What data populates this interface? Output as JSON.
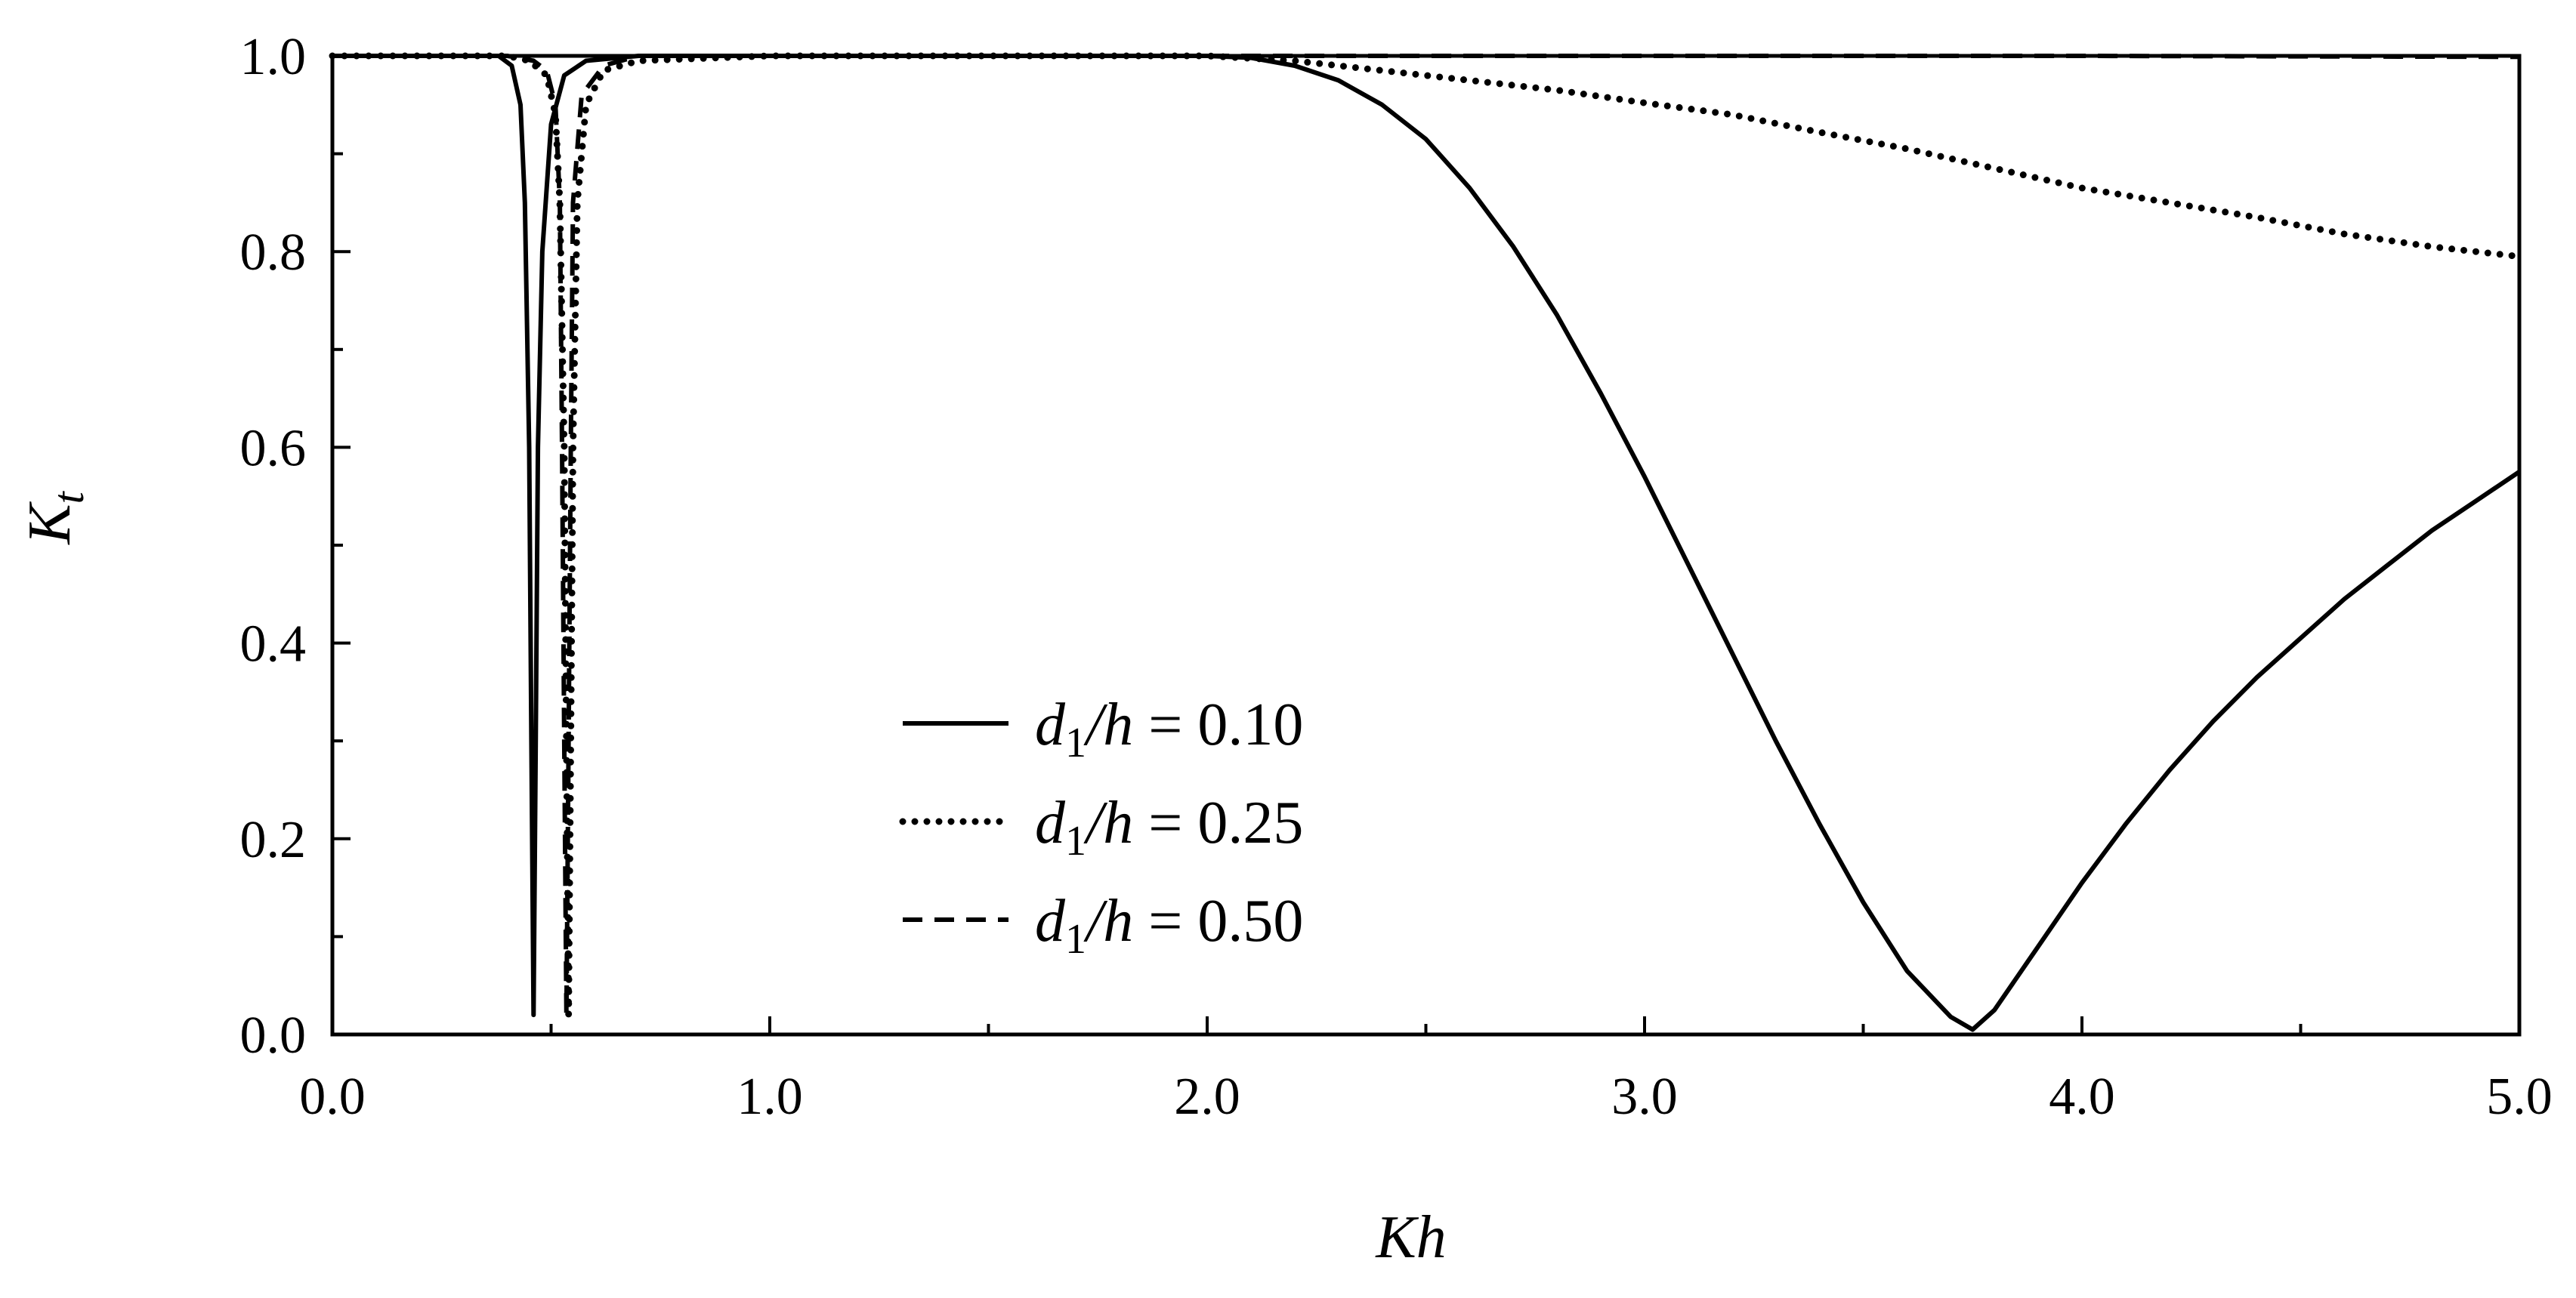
{
  "chart_data": {
    "type": "line",
    "xlabel": "Kh",
    "ylabel_main": "K",
    "ylabel_sub": "t",
    "xlim": [
      0,
      5
    ],
    "ylim": [
      0,
      1
    ],
    "x_ticks": [
      "0.0",
      "1.0",
      "2.0",
      "3.0",
      "4.0",
      "5.0"
    ],
    "y_ticks": [
      "0.0",
      "0.2",
      "0.4",
      "0.6",
      "0.8",
      "1.0"
    ],
    "grid": false,
    "legend_position": "center",
    "series": [
      {
        "name": "d1/h = 0.10",
        "legend": {
          "var": "d",
          "sub": "1",
          "rest": "/h",
          "eq": " = 0.10"
        },
        "style": "solid",
        "points": [
          [
            0,
            1
          ],
          [
            0.3,
            1
          ],
          [
            0.38,
            1
          ],
          [
            0.41,
            0.99
          ],
          [
            0.43,
            0.95
          ],
          [
            0.44,
            0.85
          ],
          [
            0.45,
            0.6
          ],
          [
            0.455,
            0.3
          ],
          [
            0.46,
            0.02
          ],
          [
            0.465,
            0.3
          ],
          [
            0.47,
            0.6
          ],
          [
            0.48,
            0.8
          ],
          [
            0.5,
            0.93
          ],
          [
            0.53,
            0.98
          ],
          [
            0.58,
            0.995
          ],
          [
            0.7,
            1
          ],
          [
            1.5,
            1
          ],
          [
            2.0,
            1
          ],
          [
            2.1,
            0.998
          ],
          [
            2.2,
            0.99
          ],
          [
            2.3,
            0.975
          ],
          [
            2.4,
            0.95
          ],
          [
            2.5,
            0.915
          ],
          [
            2.6,
            0.865
          ],
          [
            2.7,
            0.805
          ],
          [
            2.8,
            0.735
          ],
          [
            2.9,
            0.655
          ],
          [
            3.0,
            0.57
          ],
          [
            3.1,
            0.48
          ],
          [
            3.2,
            0.39
          ],
          [
            3.3,
            0.3
          ],
          [
            3.4,
            0.215
          ],
          [
            3.5,
            0.135
          ],
          [
            3.6,
            0.065
          ],
          [
            3.7,
            0.018
          ],
          [
            3.75,
            0.005
          ],
          [
            3.8,
            0.025
          ],
          [
            3.9,
            0.09
          ],
          [
            4.0,
            0.155
          ],
          [
            4.1,
            0.215
          ],
          [
            4.2,
            0.27
          ],
          [
            4.3,
            0.32
          ],
          [
            4.4,
            0.365
          ],
          [
            4.5,
            0.405
          ],
          [
            4.6,
            0.445
          ],
          [
            4.7,
            0.48
          ],
          [
            4.8,
            0.515
          ],
          [
            4.9,
            0.545
          ],
          [
            5.0,
            0.575
          ]
        ]
      },
      {
        "name": "d1/h = 0.25",
        "legend": {
          "var": "d",
          "sub": "1",
          "rest": "/h",
          "eq": " = 0.25"
        },
        "style": "dotted",
        "points": [
          [
            0,
            1
          ],
          [
            0.4,
            1
          ],
          [
            0.45,
            0.995
          ],
          [
            0.49,
            0.98
          ],
          [
            0.51,
            0.94
          ],
          [
            0.52,
            0.85
          ],
          [
            0.53,
            0.6
          ],
          [
            0.535,
            0.3
          ],
          [
            0.54,
            0.02
          ],
          [
            0.545,
            0.3
          ],
          [
            0.55,
            0.6
          ],
          [
            0.56,
            0.85
          ],
          [
            0.58,
            0.95
          ],
          [
            0.62,
            0.985
          ],
          [
            0.7,
            0.995
          ],
          [
            1.0,
            1
          ],
          [
            1.8,
            1
          ],
          [
            2.0,
            1
          ],
          [
            2.2,
            0.995
          ],
          [
            2.4,
            0.985
          ],
          [
            2.6,
            0.975
          ],
          [
            2.8,
            0.965
          ],
          [
            3.0,
            0.952
          ],
          [
            3.2,
            0.94
          ],
          [
            3.4,
            0.922
          ],
          [
            3.6,
            0.905
          ],
          [
            3.8,
            0.885
          ],
          [
            4.0,
            0.865
          ],
          [
            4.2,
            0.85
          ],
          [
            4.4,
            0.835
          ],
          [
            4.6,
            0.818
          ],
          [
            4.8,
            0.805
          ],
          [
            5.0,
            0.795
          ]
        ]
      },
      {
        "name": "d1/h = 0.50",
        "legend": {
          "var": "d",
          "sub": "1",
          "rest": "/h",
          "eq": " = 0.50"
        },
        "style": "dashed",
        "points": [
          [
            0,
            1
          ],
          [
            0.4,
            1
          ],
          [
            0.46,
            0.995
          ],
          [
            0.49,
            0.985
          ],
          [
            0.51,
            0.95
          ],
          [
            0.52,
            0.85
          ],
          [
            0.525,
            0.6
          ],
          [
            0.53,
            0.3
          ],
          [
            0.535,
            0.02
          ],
          [
            0.54,
            0.3
          ],
          [
            0.545,
            0.6
          ],
          [
            0.55,
            0.85
          ],
          [
            0.57,
            0.96
          ],
          [
            0.62,
            0.99
          ],
          [
            0.7,
            1
          ],
          [
            2.0,
            1
          ],
          [
            3.0,
            1
          ],
          [
            4.0,
            1
          ],
          [
            5.0,
            0.999
          ]
        ]
      }
    ]
  }
}
